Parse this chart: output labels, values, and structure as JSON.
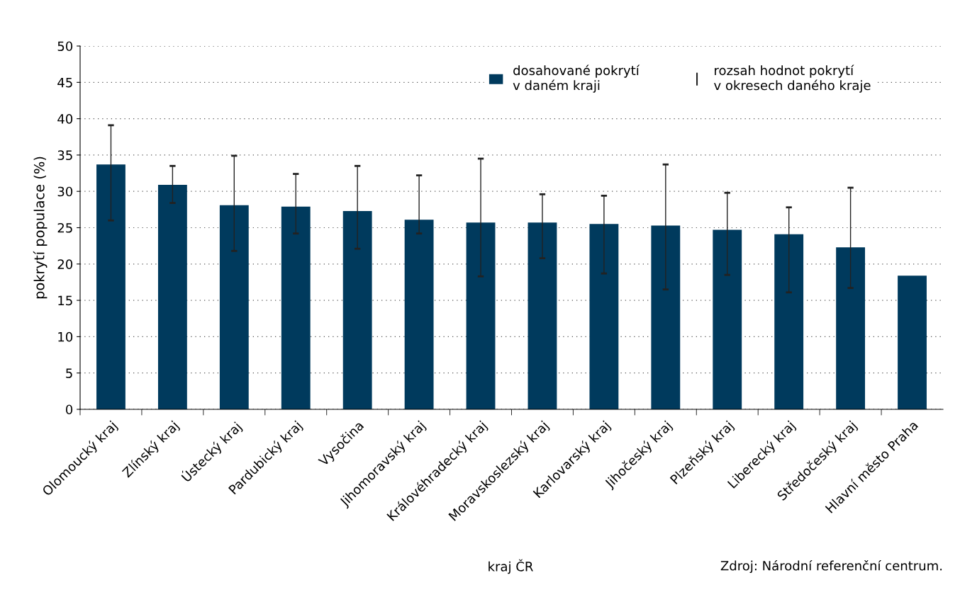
{
  "chart_data": {
    "type": "bar",
    "xlabel": "kraj ČR",
    "ylabel": "pokrytí populace (%)",
    "categories": [
      "Olomoucký kraj",
      "Zlínský kraj",
      "Ústecký kraj",
      "Pardubický kraj",
      "Vysočina",
      "Jihomoravský kraj",
      "Královéhradecký kraj",
      "Moravskoslezský kraj",
      "Karlovarský kraj",
      "Jihočeský kraj",
      "Plzeňský kraj",
      "Liberecký kraj",
      "Středočeský kraj",
      "Hlavní město Praha"
    ],
    "series": [
      {
        "name": "dosahované pokrytí\nv daném kraji",
        "color": "#003a5d",
        "values": [
          33.7,
          30.9,
          28.1,
          27.9,
          27.3,
          26.1,
          25.7,
          25.7,
          25.5,
          25.3,
          24.7,
          24.1,
          22.3,
          18.4
        ],
        "errors": [
          [
            26.0,
            39.1
          ],
          [
            28.4,
            33.5
          ],
          [
            21.8,
            34.9
          ],
          [
            24.2,
            32.4
          ],
          [
            22.1,
            33.5
          ],
          [
            24.2,
            32.2
          ],
          [
            18.3,
            34.5
          ],
          [
            20.8,
            29.6
          ],
          [
            18.7,
            29.4
          ],
          [
            16.5,
            33.7
          ],
          [
            18.5,
            29.8
          ],
          [
            16.1,
            27.8
          ],
          [
            16.7,
            30.5
          ],
          null
        ]
      }
    ],
    "annotations": [
      "rozsah hodnot pokrytí\nv okresech daného kraje",
      "Zdroj: Národní referenční centrum."
    ],
    "ylim": [
      0,
      50
    ],
    "yticks": [
      0,
      5,
      10,
      15,
      20,
      25,
      30,
      35,
      40,
      45,
      50
    ],
    "grid": "y",
    "legend": "top right"
  }
}
